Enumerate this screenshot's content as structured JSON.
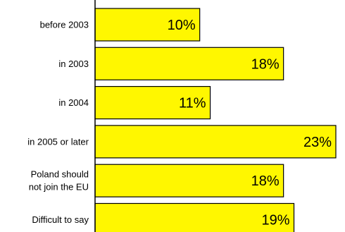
{
  "chart_data": {
    "type": "bar",
    "orientation": "horizontal",
    "categories": [
      [
        "before 2003"
      ],
      [
        "in 2003"
      ],
      [
        "in 2004"
      ],
      [
        "in 2005 or later"
      ],
      [
        "Poland should",
        "not join the EU"
      ],
      [
        "Difficult to say"
      ]
    ],
    "values": [
      10,
      18,
      11,
      23,
      18,
      19
    ],
    "value_labels": [
      "10%",
      "18%",
      "11%",
      "23%",
      "18%",
      "19%"
    ],
    "unit": "%",
    "xlim": [
      0,
      23
    ],
    "grid": false,
    "legend": "none",
    "colors": {
      "bar_fill": "#FFF700",
      "bar_stroke": "#000000",
      "axis": "#000000",
      "text": "#000000"
    }
  }
}
